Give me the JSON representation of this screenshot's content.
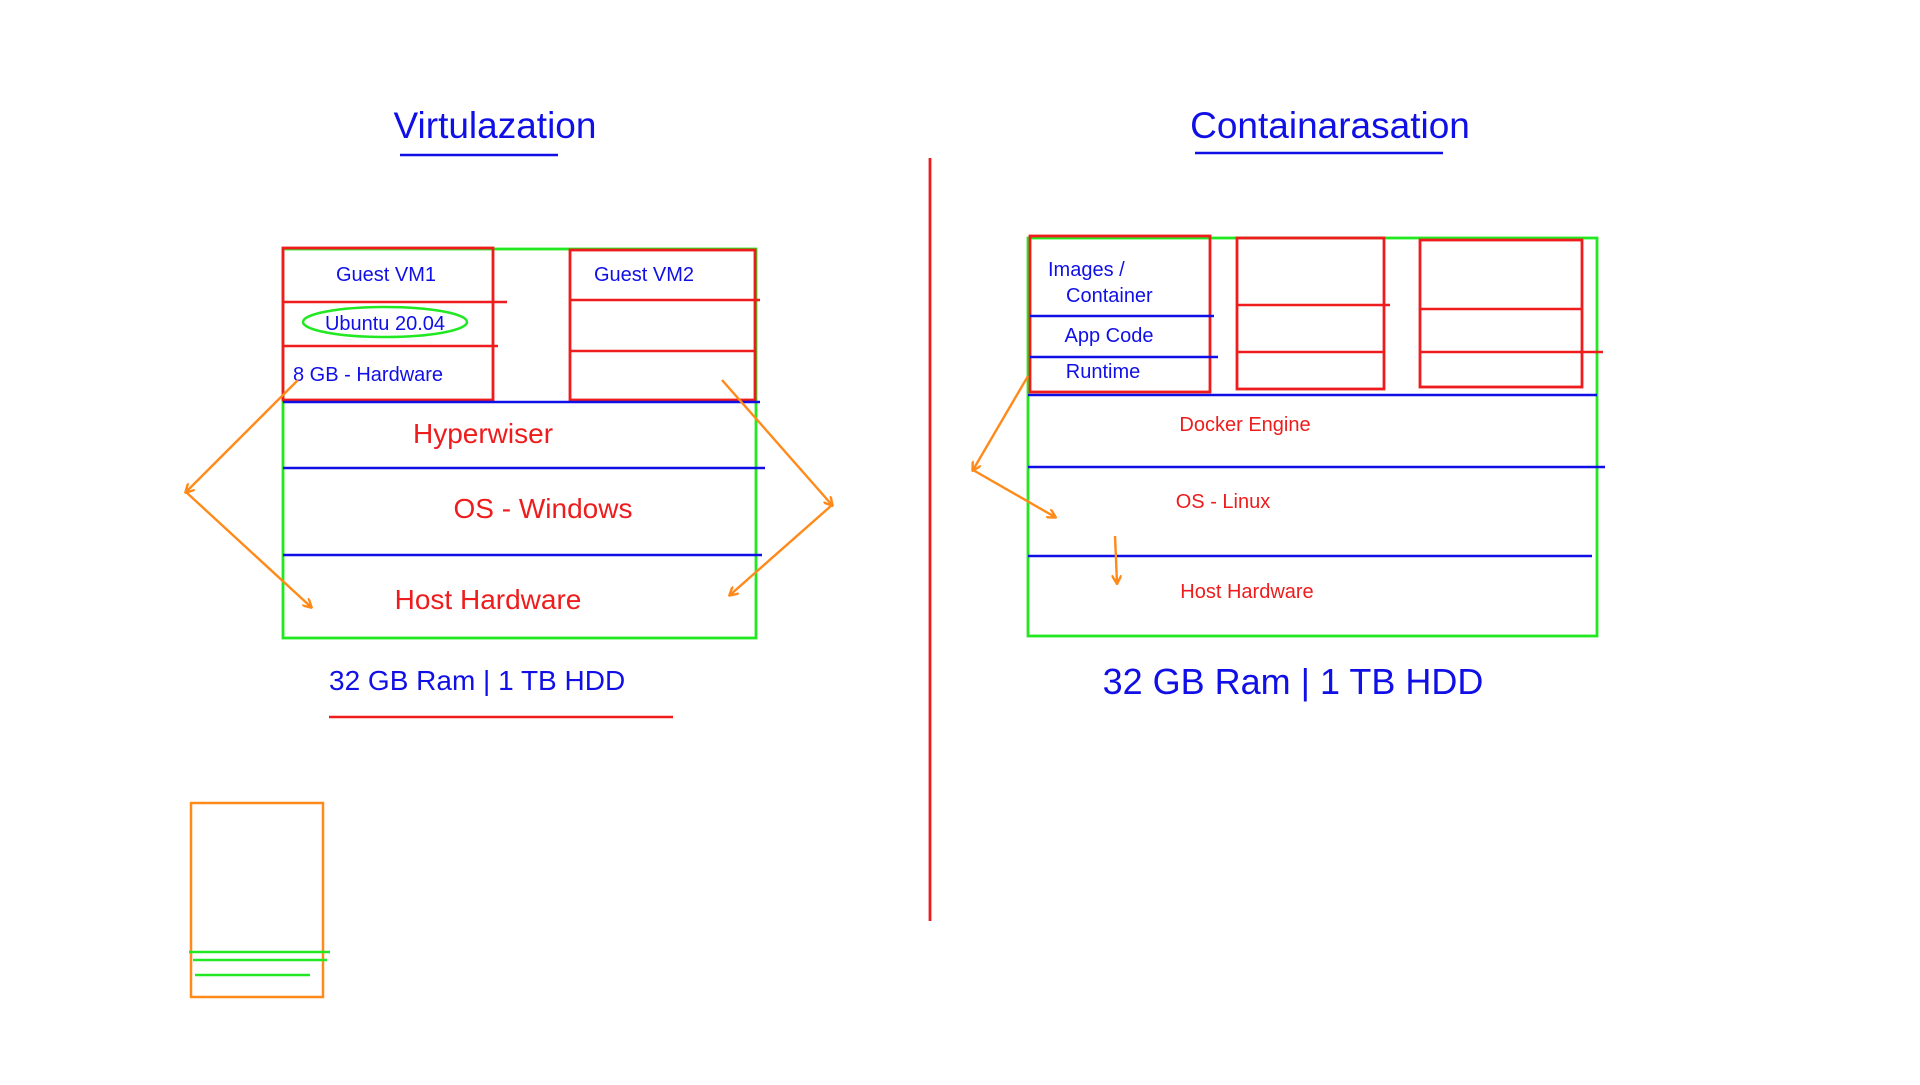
{
  "colors": {
    "blue": "#1010e6",
    "red": "#ee1c1c",
    "green": "#22e822",
    "orange": "#ff8a1a"
  },
  "virtualization": {
    "title": "Virtulazation",
    "guest_vm1": {
      "label": "Guest VM1",
      "os": "Ubuntu 20.04",
      "hardware": "8 GB - Hardware"
    },
    "guest_vm2": {
      "label": "Guest VM2"
    },
    "hypervisor": "Hyperwiser",
    "os": "OS - Windows",
    "host_hardware": "Host Hardware",
    "specs": "32 GB Ram | 1 TB HDD"
  },
  "containerization": {
    "title": "Containarasation",
    "container1": {
      "images_line1": "Images /",
      "images_line2": "Container",
      "app_code": "App Code",
      "runtime": "Runtime"
    },
    "docker_engine": "Docker Engine",
    "os": "OS - Linux",
    "host_hardware": "Host Hardware",
    "specs": "32 GB Ram | 1 TB HDD"
  }
}
